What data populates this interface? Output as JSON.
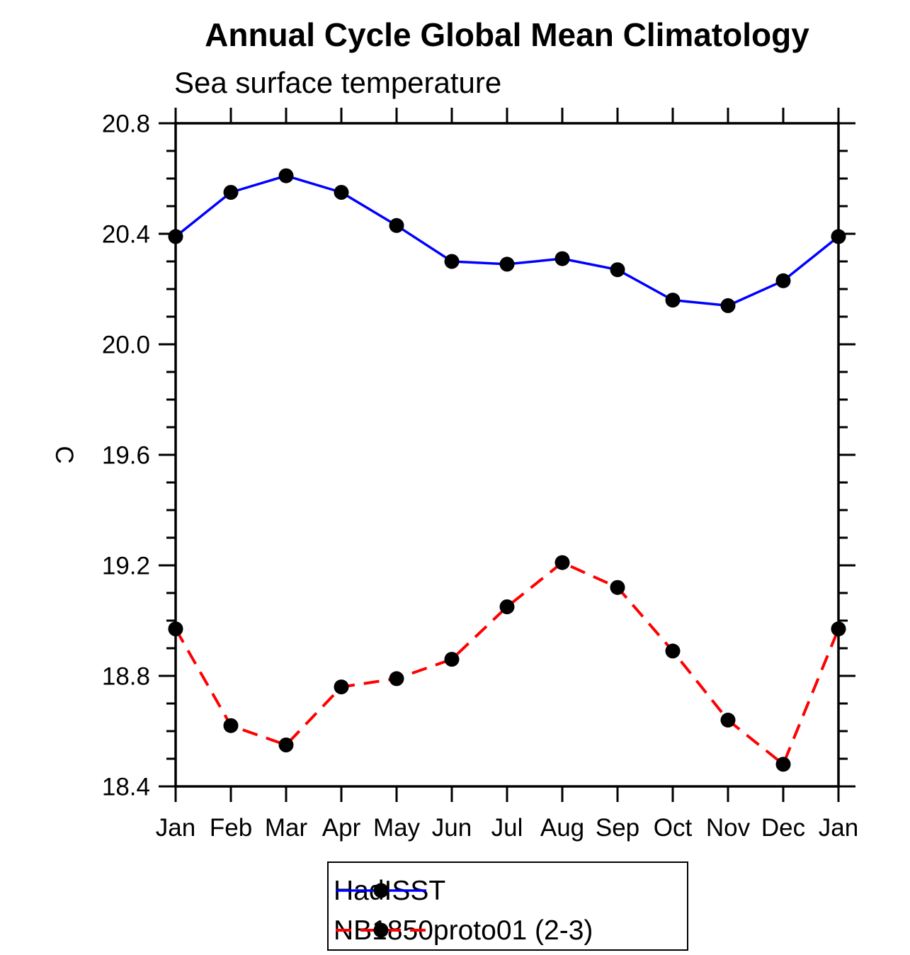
{
  "chart_data": {
    "type": "line",
    "title": "Annual Cycle Global Mean Climatology",
    "subtitle": "Sea surface temperature",
    "ylabel": "C",
    "xlabel": "",
    "categories": [
      "Jan",
      "Feb",
      "Mar",
      "Apr",
      "May",
      "Jun",
      "Jul",
      "Aug",
      "Sep",
      "Oct",
      "Nov",
      "Dec",
      "Jan"
    ],
    "y_axis": {
      "min": 18.4,
      "max": 20.8,
      "major_step": 0.4,
      "minor_step": 0.1,
      "tick_labels": [
        "18.4",
        "18.8",
        "19.2",
        "19.6",
        "20.0",
        "20.4",
        "20.8"
      ]
    },
    "grid": false,
    "legend_position": "bottom-center",
    "series": [
      {
        "name": "HadISST",
        "color": "#0000ff",
        "line_style": "solid",
        "marker": "filled-circle",
        "marker_color": "#000000",
        "values": [
          20.39,
          20.55,
          20.61,
          20.55,
          20.43,
          20.3,
          20.29,
          20.31,
          20.27,
          20.16,
          20.14,
          20.23,
          20.39
        ]
      },
      {
        "name": "NB1850proto01 (2-3)",
        "color": "#ff0000",
        "line_style": "dashed",
        "marker": "filled-circle",
        "marker_color": "#000000",
        "values": [
          18.97,
          18.62,
          18.55,
          18.76,
          18.79,
          18.86,
          19.05,
          19.21,
          19.12,
          18.89,
          18.64,
          18.48,
          18.97
        ]
      }
    ]
  }
}
